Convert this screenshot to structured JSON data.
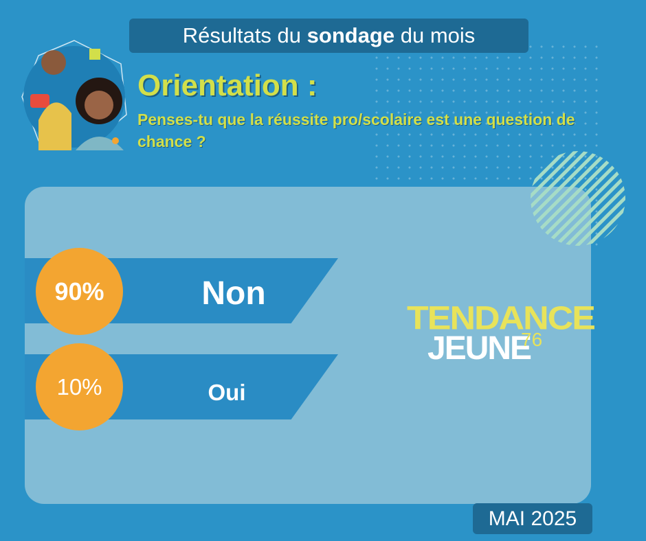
{
  "header": {
    "title_pre": "Résultats du ",
    "title_bold": "sondage",
    "title_post": " du mois",
    "heading": "Orientation :",
    "question": "Penses-tu que la réussite pro/scolaire est une question de chance ?"
  },
  "results": [
    {
      "label": "Non",
      "percent_text": "90%",
      "percent": 90
    },
    {
      "label": "Oui",
      "percent_text": "10%",
      "percent": 10
    }
  ],
  "logo": {
    "line1": "TENDANCE",
    "line2": "JEUNE",
    "number": "76"
  },
  "date": "MAI 2025",
  "colors": {
    "background": "#2b93c8",
    "panel": "#82bcd6",
    "band": "#2a8cc4",
    "badge": "#f3a531",
    "accent_yellow": "#d2df4a",
    "pill": "#1e6a94"
  }
}
